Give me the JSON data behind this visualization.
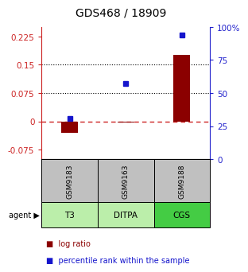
{
  "title": "GDS468 / 18909",
  "samples": [
    "GSM9183",
    "GSM9163",
    "GSM9188"
  ],
  "agents": [
    "T3",
    "DITPA",
    "CGS"
  ],
  "log_ratios": [
    -0.03,
    -0.002,
    0.175
  ],
  "percentile_ranks": [
    0.31,
    0.57,
    0.94
  ],
  "left_ylim": [
    -0.1,
    0.25
  ],
  "left_yticks": [
    -0.075,
    0.0,
    0.075,
    0.15,
    0.225
  ],
  "left_yticklabels": [
    "-0.075",
    "0",
    "0.075",
    "0.15",
    "0.225"
  ],
  "right_ytick_pcts": [
    0,
    25,
    50,
    75,
    100
  ],
  "right_yticklabels": [
    "0",
    "25",
    "50",
    "75",
    "100%"
  ],
  "hlines": [
    0.075,
    0.15
  ],
  "bar_color": "#8B0000",
  "dot_color": "#1515CC",
  "sample_bg": "#C0C0C0",
  "agent_bg_light": "#BBEEAA",
  "agent_bg_dark": "#44CC44",
  "zero_line_color": "#CC2222",
  "tick_color_left": "#CC2222",
  "tick_color_right": "#2222CC",
  "legend_bar_label": "log ratio",
  "legend_dot_label": "percentile rank within the sample"
}
